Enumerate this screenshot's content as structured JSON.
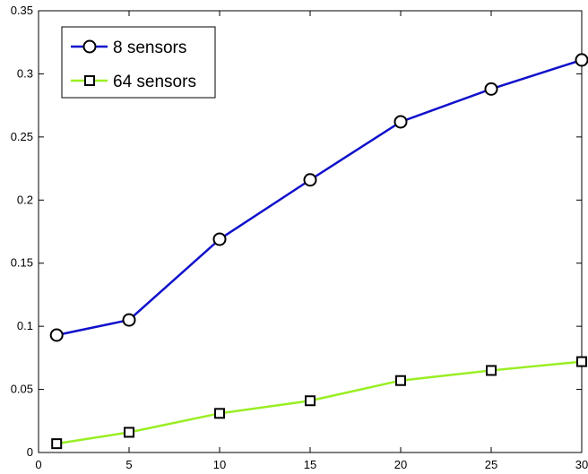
{
  "chart_data": {
    "type": "line",
    "title": "",
    "xlabel": "",
    "ylabel": "",
    "xlim": [
      0,
      30
    ],
    "ylim": [
      0,
      0.35
    ],
    "xticks": [
      0,
      5,
      10,
      15,
      20,
      25,
      30
    ],
    "yticks": [
      0,
      0.05,
      0.1,
      0.15,
      0.2,
      0.25,
      0.3,
      0.35
    ],
    "grid": false,
    "legend_position": "top-left",
    "x": [
      1,
      5,
      10,
      15,
      20,
      25,
      30
    ],
    "series": [
      {
        "name": "8 sensors",
        "color": "#1010cc",
        "marker": "circle",
        "values": [
          0.093,
          0.105,
          0.169,
          0.216,
          0.262,
          0.288,
          0.311
        ]
      },
      {
        "name": "64 sensors",
        "color": "#99ee22",
        "marker": "square",
        "values": [
          0.007,
          0.016,
          0.031,
          0.041,
          0.057,
          0.065,
          0.072
        ]
      }
    ]
  }
}
